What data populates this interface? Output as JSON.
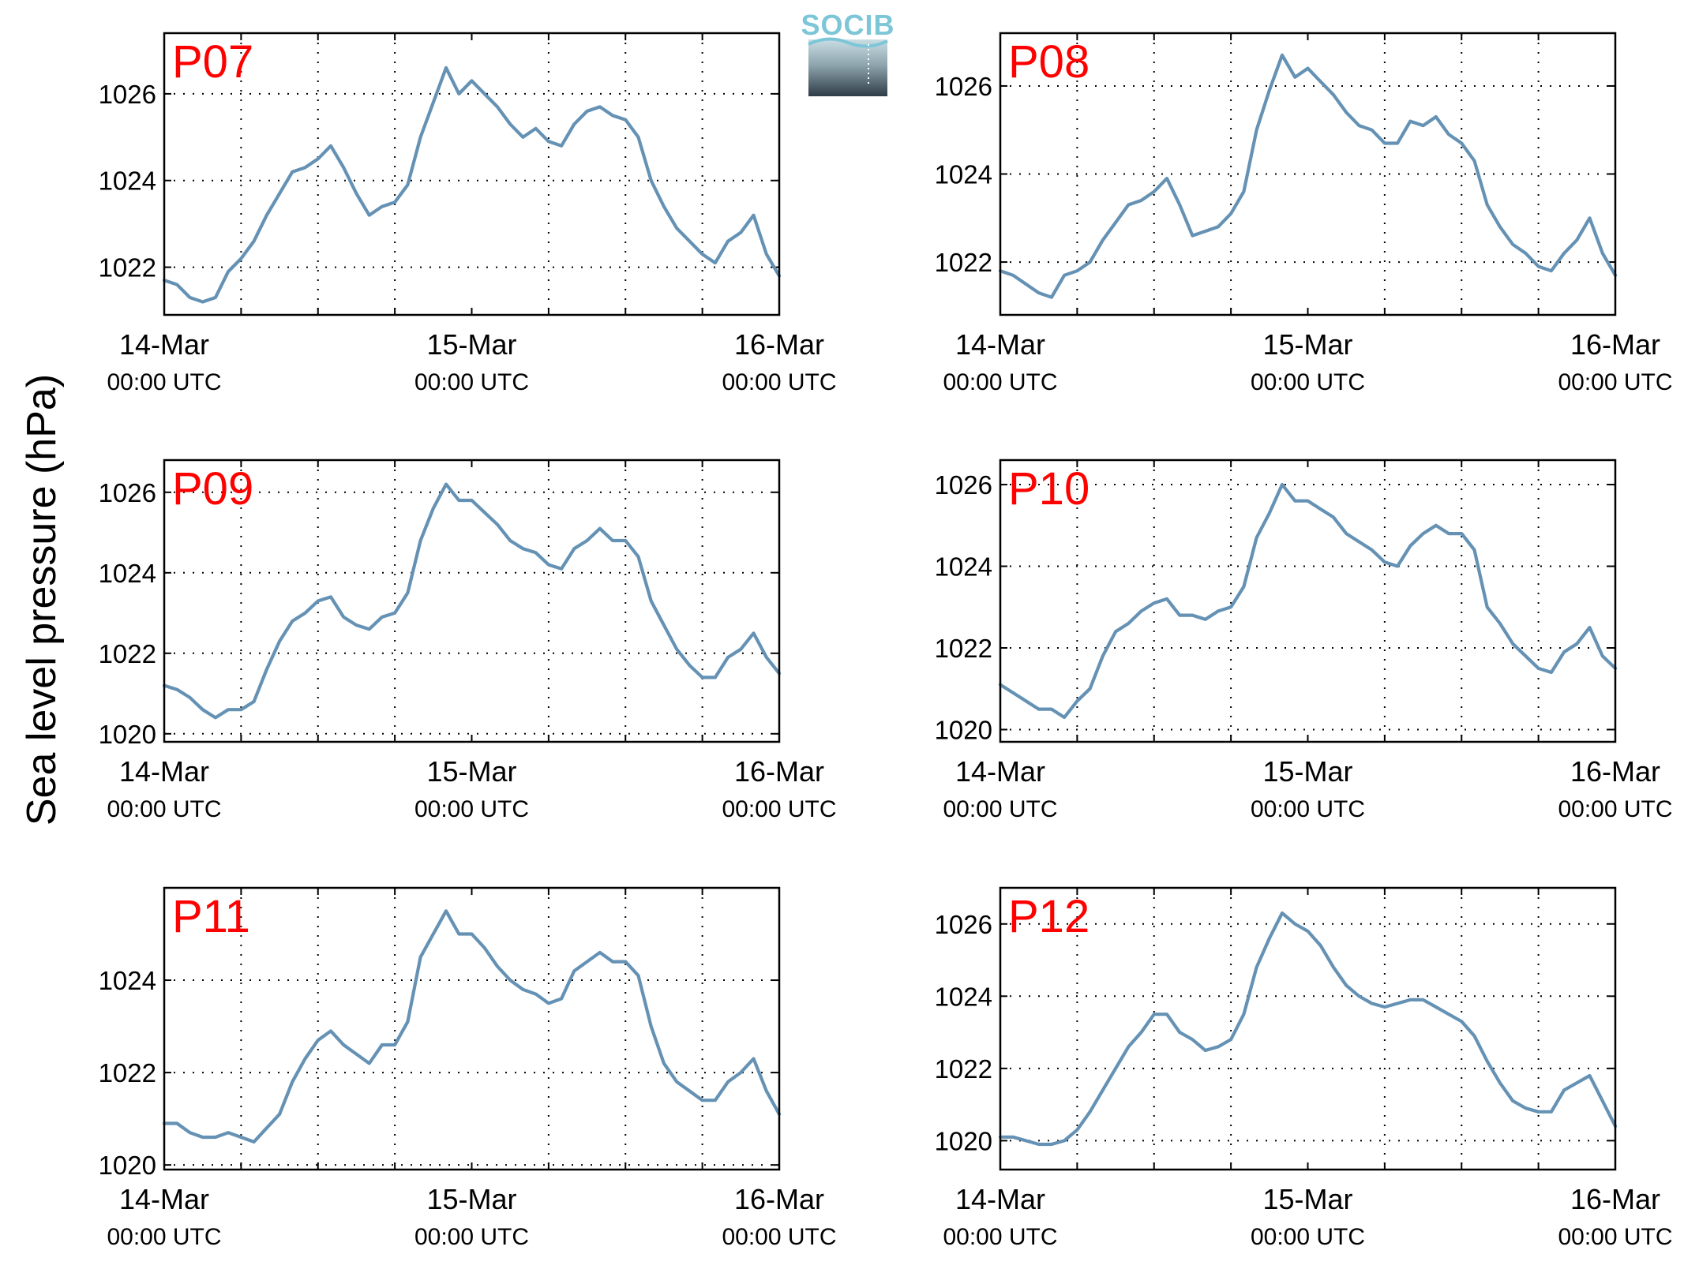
{
  "figure": {
    "ylabel": "Sea level pressure (hPa)",
    "logo_text": "SOCIB"
  },
  "colors": {
    "series": "#6592b4",
    "panel_label": "#ff0000",
    "logo_top": "#7cc6d8",
    "logo_bottom": "#2e3c46"
  },
  "chart_data": [
    {
      "type": "line",
      "title": "P07",
      "xlabel": "",
      "ylabel": "Sea level pressure (hPa)",
      "xlim": [
        "2014-03-14T00:00",
        "2014-03-16T00:00"
      ],
      "ylim": [
        1020.9,
        1027.4
      ],
      "yticks": [
        1022,
        1024,
        1026
      ],
      "xticks": [
        {
          "date": "14-Mar",
          "time": "00:00 UTC"
        },
        {
          "date": "15-Mar",
          "time": "00:00 UTC"
        },
        {
          "date": "16-Mar",
          "time": "00:00 UTC"
        }
      ],
      "grid": true,
      "series": [
        {
          "x_hours": [
            0,
            1,
            2,
            3,
            4,
            5,
            6,
            7,
            8,
            9,
            10,
            11,
            12,
            13,
            14,
            15,
            16,
            17,
            18,
            19,
            20,
            21,
            22,
            23,
            24,
            25,
            26,
            27,
            28,
            29,
            30,
            31,
            32,
            33,
            34,
            35,
            36,
            37,
            38,
            39,
            40,
            41,
            42,
            43,
            44,
            45,
            46,
            47,
            48
          ],
          "values": [
            1021.7,
            1021.6,
            1021.3,
            1021.2,
            1021.3,
            1021.9,
            1022.2,
            1022.6,
            1023.2,
            1023.7,
            1024.2,
            1024.3,
            1024.5,
            1024.8,
            1024.3,
            1023.7,
            1023.2,
            1023.4,
            1023.5,
            1023.9,
            1025.0,
            1025.8,
            1026.6,
            1026.0,
            1026.3,
            1026.0,
            1025.7,
            1025.3,
            1025.0,
            1025.2,
            1024.9,
            1024.8,
            1025.3,
            1025.6,
            1025.7,
            1025.5,
            1025.4,
            1025.0,
            1024.0,
            1023.4,
            1022.9,
            1022.6,
            1022.3,
            1022.1,
            1022.6,
            1022.8,
            1023.2,
            1022.3,
            1021.8
          ]
        }
      ]
    },
    {
      "type": "line",
      "title": "P08",
      "xlabel": "",
      "ylabel": "Sea level pressure (hPa)",
      "xlim": [
        "2014-03-14T00:00",
        "2014-03-16T00:00"
      ],
      "ylim": [
        1020.8,
        1027.2
      ],
      "yticks": [
        1022,
        1024,
        1026
      ],
      "xticks": [
        {
          "date": "14-Mar",
          "time": "00:00 UTC"
        },
        {
          "date": "15-Mar",
          "time": "00:00 UTC"
        },
        {
          "date": "16-Mar",
          "time": "00:00 UTC"
        }
      ],
      "grid": true,
      "series": [
        {
          "x_hours": [
            0,
            1,
            2,
            3,
            4,
            5,
            6,
            7,
            8,
            9,
            10,
            11,
            12,
            13,
            14,
            15,
            16,
            17,
            18,
            19,
            20,
            21,
            22,
            23,
            24,
            25,
            26,
            27,
            28,
            29,
            30,
            31,
            32,
            33,
            34,
            35,
            36,
            37,
            38,
            39,
            40,
            41,
            42,
            43,
            44,
            45,
            46,
            47,
            48
          ],
          "values": [
            1021.8,
            1021.7,
            1021.5,
            1021.3,
            1021.2,
            1021.7,
            1021.8,
            1022.0,
            1022.5,
            1022.9,
            1023.3,
            1023.4,
            1023.6,
            1023.9,
            1023.3,
            1022.6,
            1022.7,
            1022.8,
            1023.1,
            1023.6,
            1025.0,
            1025.9,
            1026.7,
            1026.2,
            1026.4,
            1026.1,
            1025.8,
            1025.4,
            1025.1,
            1025.0,
            1024.7,
            1024.7,
            1025.2,
            1025.1,
            1025.3,
            1024.9,
            1024.7,
            1024.3,
            1023.3,
            1022.8,
            1022.4,
            1022.2,
            1021.9,
            1021.8,
            1022.2,
            1022.5,
            1023.0,
            1022.2,
            1021.7
          ]
        }
      ]
    },
    {
      "type": "line",
      "title": "P09",
      "xlabel": "",
      "ylabel": "Sea level pressure (hPa)",
      "xlim": [
        "2014-03-14T00:00",
        "2014-03-16T00:00"
      ],
      "ylim": [
        1019.8,
        1026.8
      ],
      "yticks": [
        1020,
        1022,
        1024,
        1026
      ],
      "xticks": [
        {
          "date": "14-Mar",
          "time": "00:00 UTC"
        },
        {
          "date": "15-Mar",
          "time": "00:00 UTC"
        },
        {
          "date": "16-Mar",
          "time": "00:00 UTC"
        }
      ],
      "grid": true,
      "series": [
        {
          "x_hours": [
            0,
            1,
            2,
            3,
            4,
            5,
            6,
            7,
            8,
            9,
            10,
            11,
            12,
            13,
            14,
            15,
            16,
            17,
            18,
            19,
            20,
            21,
            22,
            23,
            24,
            25,
            26,
            27,
            28,
            29,
            30,
            31,
            32,
            33,
            34,
            35,
            36,
            37,
            38,
            39,
            40,
            41,
            42,
            43,
            44,
            45,
            46,
            47,
            48
          ],
          "values": [
            1021.2,
            1021.1,
            1020.9,
            1020.6,
            1020.4,
            1020.6,
            1020.6,
            1020.8,
            1021.6,
            1022.3,
            1022.8,
            1023.0,
            1023.3,
            1023.4,
            1022.9,
            1022.7,
            1022.6,
            1022.9,
            1023.0,
            1023.5,
            1024.8,
            1025.6,
            1026.2,
            1025.8,
            1025.8,
            1025.5,
            1025.2,
            1024.8,
            1024.6,
            1024.5,
            1024.2,
            1024.1,
            1024.6,
            1024.8,
            1025.1,
            1024.8,
            1024.8,
            1024.4,
            1023.3,
            1022.7,
            1022.1,
            1021.7,
            1021.4,
            1021.4,
            1021.9,
            1022.1,
            1022.5,
            1021.9,
            1021.5
          ]
        }
      ]
    },
    {
      "type": "line",
      "title": "P10",
      "xlabel": "",
      "ylabel": "Sea level pressure (hPa)",
      "xlim": [
        "2014-03-14T00:00",
        "2014-03-16T00:00"
      ],
      "ylim": [
        1019.7,
        1026.6
      ],
      "yticks": [
        1020,
        1022,
        1024,
        1026
      ],
      "xticks": [
        {
          "date": "14-Mar",
          "time": "00:00 UTC"
        },
        {
          "date": "15-Mar",
          "time": "00:00 UTC"
        },
        {
          "date": "16-Mar",
          "time": "00:00 UTC"
        }
      ],
      "grid": true,
      "series": [
        {
          "x_hours": [
            0,
            1,
            2,
            3,
            4,
            5,
            6,
            7,
            8,
            9,
            10,
            11,
            12,
            13,
            14,
            15,
            16,
            17,
            18,
            19,
            20,
            21,
            22,
            23,
            24,
            25,
            26,
            27,
            28,
            29,
            30,
            31,
            32,
            33,
            34,
            35,
            36,
            37,
            38,
            39,
            40,
            41,
            42,
            43,
            44,
            45,
            46,
            47,
            48
          ],
          "values": [
            1021.1,
            1020.9,
            1020.7,
            1020.5,
            1020.5,
            1020.3,
            1020.7,
            1021.0,
            1021.8,
            1022.4,
            1022.6,
            1022.9,
            1023.1,
            1023.2,
            1022.8,
            1022.8,
            1022.7,
            1022.9,
            1023.0,
            1023.5,
            1024.7,
            1025.3,
            1026.0,
            1025.6,
            1025.6,
            1025.4,
            1025.2,
            1024.8,
            1024.6,
            1024.4,
            1024.1,
            1024.0,
            1024.5,
            1024.8,
            1025.0,
            1024.8,
            1024.8,
            1024.4,
            1023.0,
            1022.6,
            1022.1,
            1021.8,
            1021.5,
            1021.4,
            1021.9,
            1022.1,
            1022.5,
            1021.8,
            1021.5
          ]
        }
      ]
    },
    {
      "type": "line",
      "title": "P11",
      "xlabel": "",
      "ylabel": "Sea level pressure (hPa)",
      "xlim": [
        "2014-03-14T00:00",
        "2014-03-16T00:00"
      ],
      "ylim": [
        1019.9,
        1026.0
      ],
      "yticks": [
        1020,
        1022,
        1024
      ],
      "xticks": [
        {
          "date": "14-Mar",
          "time": "00:00 UTC"
        },
        {
          "date": "15-Mar",
          "time": "00:00 UTC"
        },
        {
          "date": "16-Mar",
          "time": "00:00 UTC"
        }
      ],
      "grid": true,
      "series": [
        {
          "x_hours": [
            0,
            1,
            2,
            3,
            4,
            5,
            6,
            7,
            8,
            9,
            10,
            11,
            12,
            13,
            14,
            15,
            16,
            17,
            18,
            19,
            20,
            21,
            22,
            23,
            24,
            25,
            26,
            27,
            28,
            29,
            30,
            31,
            32,
            33,
            34,
            35,
            36,
            37,
            38,
            39,
            40,
            41,
            42,
            43,
            44,
            45,
            46,
            47,
            48
          ],
          "values": [
            1020.9,
            1020.9,
            1020.7,
            1020.6,
            1020.6,
            1020.7,
            1020.6,
            1020.5,
            1020.8,
            1021.1,
            1021.8,
            1022.3,
            1022.7,
            1022.9,
            1022.6,
            1022.4,
            1022.2,
            1022.6,
            1022.6,
            1023.1,
            1024.5,
            1025.0,
            1025.5,
            1025.0,
            1025.0,
            1024.7,
            1024.3,
            1024.0,
            1023.8,
            1023.7,
            1023.5,
            1023.6,
            1024.2,
            1024.4,
            1024.6,
            1024.4,
            1024.4,
            1024.1,
            1023.0,
            1022.2,
            1021.8,
            1021.6,
            1021.4,
            1021.4,
            1021.8,
            1022.0,
            1022.3,
            1021.6,
            1021.1
          ]
        }
      ]
    },
    {
      "type": "line",
      "title": "P12",
      "xlabel": "",
      "ylabel": "Sea level pressure (hPa)",
      "xlim": [
        "2014-03-14T00:00",
        "2014-03-16T00:00"
      ],
      "ylim": [
        1019.2,
        1027.0
      ],
      "yticks": [
        1020,
        1022,
        1024,
        1026
      ],
      "xticks": [
        {
          "date": "14-Mar",
          "time": "00:00 UTC"
        },
        {
          "date": "15-Mar",
          "time": "00:00 UTC"
        },
        {
          "date": "16-Mar",
          "time": "00:00 UTC"
        }
      ],
      "grid": true,
      "series": [
        {
          "x_hours": [
            0,
            1,
            2,
            3,
            4,
            5,
            6,
            7,
            8,
            9,
            10,
            11,
            12,
            13,
            14,
            15,
            16,
            17,
            18,
            19,
            20,
            21,
            22,
            23,
            24,
            25,
            26,
            27,
            28,
            29,
            30,
            31,
            32,
            33,
            34,
            35,
            36,
            37,
            38,
            39,
            40,
            41,
            42,
            43,
            44,
            45,
            46,
            47,
            48
          ],
          "values": [
            1020.1,
            1020.1,
            1020.0,
            1019.9,
            1019.9,
            1020.0,
            1020.3,
            1020.8,
            1021.4,
            1022.0,
            1022.6,
            1023.0,
            1023.5,
            1023.5,
            1023.0,
            1022.8,
            1022.5,
            1022.6,
            1022.8,
            1023.5,
            1024.8,
            1025.6,
            1026.3,
            1026.0,
            1025.8,
            1025.4,
            1024.8,
            1024.3,
            1024.0,
            1023.8,
            1023.7,
            1023.8,
            1023.9,
            1023.9,
            1023.7,
            1023.5,
            1023.3,
            1022.9,
            1022.2,
            1021.6,
            1021.1,
            1020.9,
            1020.8,
            1020.8,
            1021.4,
            1021.6,
            1021.8,
            1021.1,
            1020.4
          ]
        }
      ]
    }
  ]
}
